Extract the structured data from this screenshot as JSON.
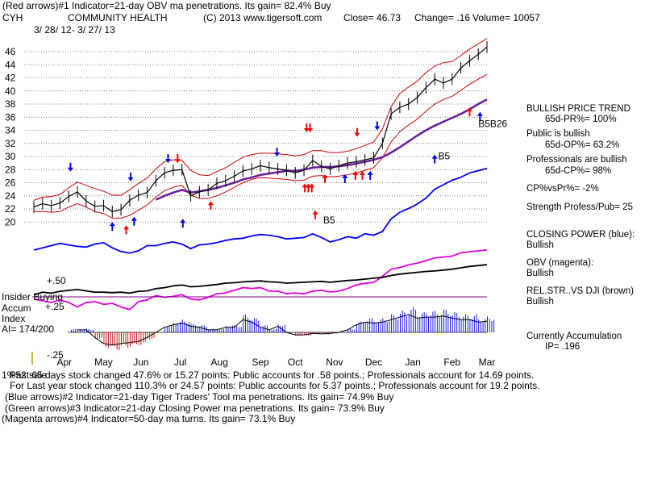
{
  "header": {
    "line1": "(Red arrows)#1 Indicator=21-day OBV ma penetrations. Its gain= 82.4% Buy",
    "ticker": "CYH",
    "company": "COMMUNITY HEALTH",
    "copyright": "(C) 2013 www.tigersoft.com",
    "close": "Close=  46.73",
    "change": "Change= .16",
    "volume": "Volume= 10057",
    "date_range": "3/ 28/ 12- 3/ 27/ 13"
  },
  "right_panel": {
    "bullish_trend_title": "BULLISH PRICE TREND",
    "pr": "65d-PR%= 100%",
    "public_title": "Public is bullish",
    "op": "65d-OP%= 63.2%",
    "prof_title": "Professionals are bullish",
    "cp": "65d-CP%= 98%",
    "cpvspr": "CP%vsPr%= -2%",
    "strength": "Strength Profess/Pub= 25",
    "closing_power_title": "CLOSING POWER (blue):",
    "closing_power_value": "Bullish",
    "obv_title": "OBV (magenta):",
    "obv_value": "Bullish",
    "relstr_title": "REL.STR..VS DJI (brown)",
    "relstr_value": "Bullish",
    "accum_title": "Currently Accumulation",
    "ip": "IP= .196"
  },
  "indicator_labels": {
    "plus50": "+.50",
    "insider": "Insider Buying",
    "accum": "Accum",
    "plus25": "+.25",
    "index": "Index",
    "ai": "AI= 174/200",
    "minus25": "-.25"
  },
  "footer": {
    "overlap": "1%52 sale",
    "line1": "Past 65 days stock changed  47.6% or  15.27 points:  Public accounts for  .58 points.;  Professionals account for  14.69 points.",
    "line2": "For Last year stock changed  110.3% or  24.57 points:  Public accounts for  5.37 points.;  Professionals account for  19.2 points.",
    "line3": "(Blue arrows)#2 Indicator=21-day Tiger Traders' Tool ma penetrations. Its gain= 74.9% Buy",
    "line4": "(Green arrows)#3 Indicator=21-day Closing Power ma penetrations. Its gain= 73.9% Buy",
    "line5": "(Magenta arrows)#4 Indicator=50-day ma turns. Its gain= 73.1% Buy"
  },
  "chart_annotations": [
    "B5",
    "B5",
    "B5B26"
  ],
  "colors": {
    "price": "#000000",
    "band": "#cc0000",
    "ma": "#6a1b9a",
    "closing_power": "#0000ff",
    "obv": "#e000e0",
    "relstr": "#000000",
    "accum_pos": "#0000ff",
    "accum_neg": "#cc0000",
    "red_arrow": "#ff0000",
    "blue_arrow": "#0000ff"
  },
  "chart_data": {
    "type": "line",
    "title": "CYH  COMMUNITY HEALTH",
    "x": [
      0,
      1,
      2,
      3,
      4,
      5,
      6,
      7,
      8,
      9,
      10,
      11,
      12,
      13,
      14,
      15,
      16,
      17,
      18,
      19,
      20,
      21,
      22,
      23,
      24,
      25,
      26,
      27,
      28,
      29,
      30,
      31,
      32,
      33,
      34,
      35,
      36,
      37,
      38,
      39,
      40,
      41,
      42,
      43,
      44,
      45,
      46,
      47,
      48,
      49,
      50,
      51,
      52
    ],
    "x_tick_labels": [
      "Apr",
      "May",
      "Jun",
      "Jul",
      "Aug",
      "Sep",
      "Oct",
      "Nov",
      "Dec",
      "Jan",
      "Feb",
      "Mar"
    ],
    "x_tick_positions": [
      3.5,
      8,
      12.3,
      16.8,
      21.3,
      26,
      30,
      34.5,
      39,
      43.5,
      48,
      52
    ],
    "y_ticks": [
      20,
      22,
      24,
      26,
      28,
      30,
      32,
      34,
      36,
      38,
      40,
      42,
      44,
      46
    ],
    "ylim": [
      18.8,
      47.6
    ],
    "series": [
      {
        "name": "Close",
        "values": [
          22.3,
          22.8,
          22.5,
          22.9,
          23.9,
          24.6,
          23.2,
          22.4,
          22.5,
          21.6,
          21.9,
          23.3,
          24.1,
          24.5,
          26.3,
          27.5,
          27.9,
          28.0,
          24.0,
          24.6,
          24.9,
          25.9,
          26.3,
          27.0,
          27.8,
          28.1,
          28.6,
          28.3,
          28.1,
          27.9,
          27.5,
          27.9,
          29.4,
          28.5,
          28.1,
          28.6,
          29.0,
          29.2,
          29.5,
          29.8,
          32.0,
          36.5,
          37.5,
          38.0,
          39.0,
          40.5,
          41.8,
          41.2,
          41.8,
          43.5,
          44.6,
          45.6,
          46.7
        ]
      },
      {
        "name": "Upper band",
        "values": [
          23.3,
          23.8,
          23.9,
          24.2,
          25.2,
          26.1,
          25.6,
          25.1,
          24.7,
          24.1,
          24.1,
          24.9,
          25.9,
          26.7,
          28.1,
          29.2,
          29.5,
          29.4,
          27.9,
          27.2,
          27.1,
          27.7,
          28.3,
          29.1,
          29.9,
          30.3,
          30.5,
          30.5,
          30.4,
          30.3,
          30.1,
          30.3,
          30.9,
          30.9,
          30.6,
          30.6,
          30.8,
          31.2,
          31.7,
          32.2,
          34.2,
          37.6,
          39.6,
          40.6,
          41.5,
          42.8,
          43.8,
          44.3,
          44.5,
          45.4,
          46.4,
          47.2,
          48.0
        ]
      },
      {
        "name": "Lower band",
        "values": [
          21.6,
          21.6,
          21.5,
          21.6,
          22.3,
          22.8,
          22.3,
          21.6,
          21.3,
          20.6,
          20.6,
          21.0,
          21.8,
          22.6,
          23.8,
          24.8,
          25.3,
          25.6,
          24.1,
          23.6,
          23.6,
          24.0,
          24.6,
          25.3,
          26.0,
          26.5,
          26.8,
          26.7,
          26.6,
          26.5,
          26.3,
          26.4,
          27.0,
          27.1,
          26.9,
          27.0,
          27.2,
          27.5,
          27.9,
          28.3,
          29.8,
          32.2,
          33.8,
          34.8,
          35.7,
          36.9,
          38.0,
          38.7,
          39.2,
          40.1,
          41.0,
          41.8,
          42.5
        ]
      },
      {
        "name": "50-day MA",
        "values": [
          null,
          null,
          null,
          null,
          null,
          null,
          null,
          null,
          null,
          null,
          null,
          null,
          null,
          null,
          23.4,
          24.0,
          24.5,
          24.9,
          24.5,
          24.7,
          24.9,
          25.2,
          25.6,
          26.0,
          26.5,
          26.8,
          27.2,
          27.4,
          27.6,
          27.8,
          27.8,
          28.0,
          28.3,
          28.4,
          28.4,
          28.5,
          28.7,
          28.9,
          29.2,
          29.5,
          29.9,
          30.6,
          31.4,
          32.3,
          33.2,
          34.0,
          34.7,
          35.3,
          35.9,
          36.5,
          37.2,
          38.0,
          38.7
        ]
      }
    ],
    "indicators": [
      {
        "name": "Closing Power",
        "values": [
          25.0,
          25.3,
          25.6,
          25.9,
          25.7,
          25.5,
          25.4,
          25.8,
          26.0,
          25.3,
          24.8,
          24.6,
          24.9,
          25.6,
          25.6,
          25.9,
          26.1,
          25.8,
          25.2,
          25.7,
          25.8,
          26.0,
          26.3,
          26.5,
          26.6,
          26.9,
          27.1,
          27.0,
          26.8,
          26.5,
          26.6,
          26.7,
          27.2,
          26.7,
          26.1,
          26.4,
          26.8,
          26.6,
          27.2,
          27.0,
          27.5,
          29.2,
          30.1,
          30.6,
          31.2,
          32.0,
          33.2,
          33.8,
          34.4,
          34.8,
          35.4,
          35.7,
          36.0
        ]
      },
      {
        "name": "OBV",
        "values": [
          58.0,
          57.8,
          57.6,
          57.9,
          57.6,
          57.1,
          57.6,
          57.7,
          57.4,
          57.5,
          57.1,
          56.8,
          57.7,
          57.9,
          58.4,
          58.2,
          58.3,
          58.5,
          58.0,
          57.9,
          58.2,
          58.6,
          58.7,
          59.0,
          59.3,
          59.2,
          59.3,
          58.9,
          58.9,
          58.6,
          58.7,
          58.6,
          58.9,
          59.0,
          58.8,
          58.9,
          59.2,
          59.6,
          59.8,
          59.9,
          60.6,
          61.4,
          61.6,
          61.9,
          62.1,
          62.4,
          62.7,
          62.8,
          62.9,
          63.3,
          63.4,
          63.5,
          63.6
        ]
      },
      {
        "name": "Rel.Str vs DJI",
        "values": [
          49.0,
          49.6,
          49.4,
          49.8,
          50.0,
          50.2,
          49.9,
          49.6,
          49.6,
          49.5,
          49.6,
          49.4,
          49.8,
          49.9,
          50.4,
          50.6,
          51.0,
          51.2,
          50.8,
          50.9,
          51.1,
          51.3,
          51.6,
          51.7,
          51.9,
          52.0,
          52.1,
          51.9,
          51.8,
          51.6,
          51.7,
          51.8,
          51.9,
          52.0,
          51.8,
          52.0,
          52.2,
          52.3,
          52.5,
          52.7,
          52.9,
          53.3,
          53.6,
          53.8,
          54.0,
          54.2,
          54.3,
          54.5,
          54.7,
          55.0,
          55.3,
          55.5,
          55.7
        ]
      },
      {
        "name": "Accumulation Index",
        "values": [
          0.1,
          0.05,
          0.0,
          0.0,
          0.05,
          0.05,
          0.05,
          -0.1,
          -0.22,
          -0.25,
          -0.22,
          -0.2,
          -0.18,
          -0.1,
          0.0,
          0.1,
          0.15,
          0.18,
          0.12,
          0.1,
          0.05,
          0.05,
          0.1,
          0.1,
          0.25,
          0.2,
          0.1,
          0.05,
          0.12,
          0.0,
          -0.05,
          -0.05,
          -0.02,
          -0.03,
          -0.02,
          0.0,
          0.05,
          0.15,
          0.2,
          0.18,
          0.2,
          0.25,
          0.3,
          0.35,
          0.28,
          0.3,
          0.3,
          0.32,
          0.28,
          0.25,
          0.25,
          0.2,
          0.22
        ]
      }
    ],
    "accum_ylim": [
      -0.28,
      0.55
    ]
  }
}
